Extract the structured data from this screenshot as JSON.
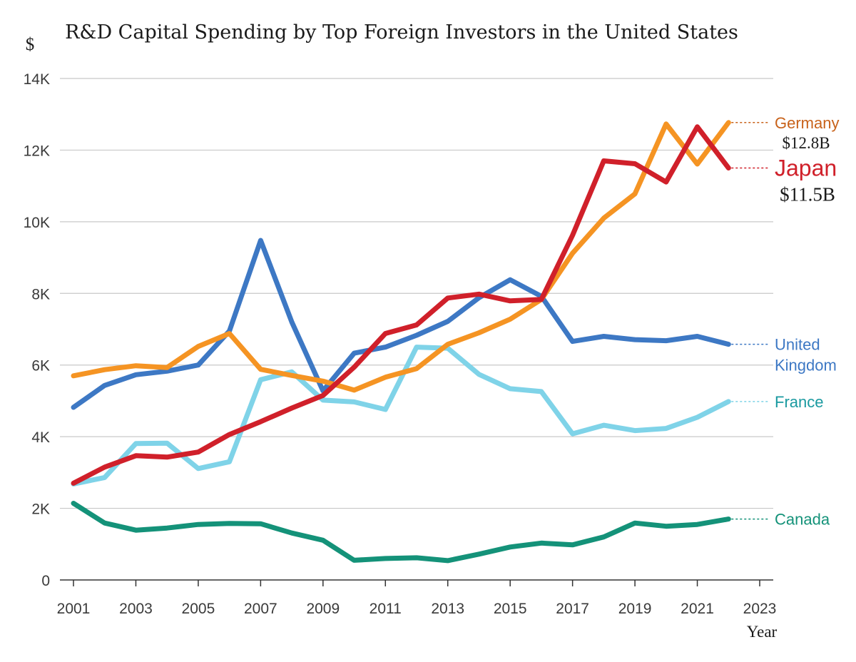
{
  "chart_data": {
    "type": "line",
    "title": "R&D Capital Spending by Top Foreign Investors in the United States",
    "ylabel": "$",
    "xlabel": "Year",
    "ylim": [
      0,
      14000
    ],
    "xlim": [
      2001,
      2023
    ],
    "y_ticks": [
      0,
      2000,
      4000,
      6000,
      8000,
      10000,
      12000,
      14000
    ],
    "y_tick_labels": [
      "0",
      "2K",
      "4K",
      "6K",
      "8K",
      "10K",
      "12K",
      "14K"
    ],
    "x_ticks": [
      2001,
      2003,
      2005,
      2007,
      2009,
      2011,
      2013,
      2015,
      2017,
      2019,
      2021,
      2023
    ],
    "x_tick_labels": [
      "2001",
      "2003",
      "2005",
      "2007",
      "2009",
      "2011",
      "2013",
      "2015",
      "2017",
      "2019",
      "2021",
      "2023"
    ],
    "grid": true,
    "x": [
      2001,
      2002,
      2003,
      2004,
      2005,
      2006,
      2007,
      2008,
      2009,
      2010,
      2011,
      2012,
      2013,
      2014,
      2015,
      2016,
      2017,
      2018,
      2019,
      2020,
      2021,
      2022
    ],
    "series": [
      {
        "name": "Germany",
        "color": "#f59423",
        "label_color": "#c8621a",
        "value_label": "$12.8B",
        "values": [
          5700,
          5870,
          5980,
          5930,
          6520,
          6880,
          5880,
          5710,
          5550,
          5300,
          5660,
          5900,
          6580,
          6900,
          7280,
          7830,
          9120,
          10100,
          10780,
          12730,
          11610,
          12770
        ]
      },
      {
        "name": "Japan",
        "color": "#d0202a",
        "label_color": "#d0202a",
        "value_label": "$11.5B",
        "values": [
          2700,
          3150,
          3470,
          3430,
          3570,
          4060,
          4420,
          4800,
          5150,
          5940,
          6880,
          7120,
          7870,
          7980,
          7790,
          7830,
          9620,
          11700,
          11620,
          11110,
          12650,
          11500
        ]
      },
      {
        "name": "United Kingdom",
        "label_lines": [
          "United",
          "Kingdom"
        ],
        "color": "#3d78c4",
        "label_color": "#3d78c4",
        "values": [
          4820,
          5430,
          5730,
          5830,
          6000,
          6950,
          9480,
          7200,
          5280,
          6330,
          6500,
          6830,
          7220,
          7880,
          8380,
          7920,
          6660,
          6800,
          6710,
          6680,
          6800,
          6580
        ]
      },
      {
        "name": "France",
        "color": "#7fd3e8",
        "label_color": "#1a9aa0",
        "values": [
          2680,
          2860,
          3810,
          3820,
          3110,
          3300,
          5590,
          5810,
          5020,
          4970,
          4760,
          6500,
          6470,
          5740,
          5340,
          5260,
          4080,
          4320,
          4170,
          4230,
          4540,
          4980
        ]
      },
      {
        "name": "Canada",
        "color": "#149279",
        "label_color": "#149279",
        "values": [
          2140,
          1590,
          1390,
          1450,
          1550,
          1580,
          1570,
          1310,
          1110,
          550,
          600,
          620,
          540,
          720,
          920,
          1030,
          980,
          1200,
          1590,
          1500,
          1550,
          1700
        ]
      }
    ]
  }
}
